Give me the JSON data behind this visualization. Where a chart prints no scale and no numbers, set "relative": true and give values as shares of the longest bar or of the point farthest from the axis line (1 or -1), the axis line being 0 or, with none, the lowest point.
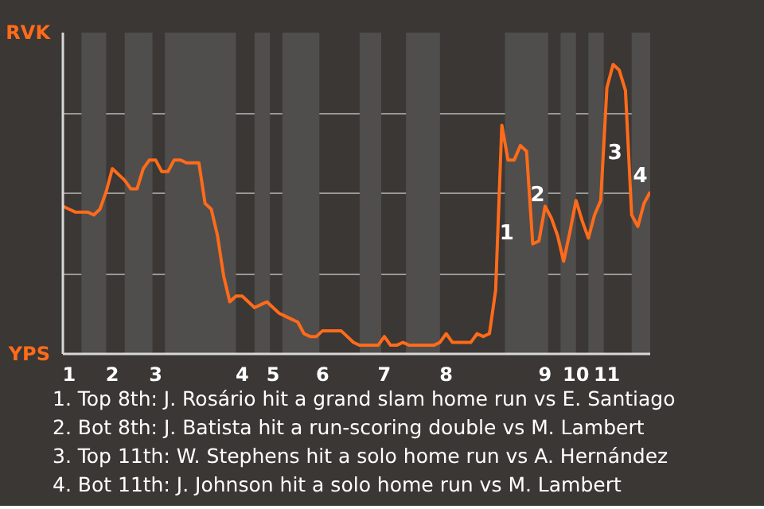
{
  "chart_data": {
    "type": "line",
    "relative": true,
    "categories": [
      null,
      "1",
      null,
      null,
      null,
      null,
      null,
      null,
      "2",
      null,
      null,
      null,
      null,
      null,
      null,
      "3",
      null,
      null,
      null,
      null,
      null,
      null,
      null,
      null,
      null,
      null,
      null,
      null,
      null,
      "4",
      null,
      null,
      null,
      null,
      "5",
      null,
      null,
      null,
      null,
      null,
      null,
      null,
      "6",
      null,
      null,
      null,
      null,
      null,
      null,
      null,
      null,
      null,
      "7",
      null,
      null,
      null,
      null,
      null,
      null,
      null,
      null,
      null,
      "8",
      null,
      null,
      null,
      null,
      null,
      null,
      null,
      null,
      null,
      null,
      null,
      null,
      null,
      null,
      null,
      "9",
      null,
      null,
      null,
      null,
      "10",
      null,
      null,
      null,
      null,
      "11",
      null,
      null,
      null,
      null,
      null,
      null,
      null
    ],
    "grid": "y",
    "marker": "none",
    "line_style": "solid",
    "series": [
      {
        "color": "#ff6b1a",
        "values": [
          0.51,
          0.5,
          0.49,
          0.49,
          0.49,
          0.48,
          0.5,
          0.56,
          0.64,
          0.62,
          0.6,
          0.57,
          0.57,
          0.64,
          0.67,
          0.67,
          0.63,
          0.63,
          0.67,
          0.67,
          0.66,
          0.66,
          0.66,
          0.52,
          0.5,
          0.41,
          0.27,
          0.18,
          0.2,
          0.2,
          0.18,
          0.16,
          0.17,
          0.18,
          0.16,
          0.14,
          0.13,
          0.12,
          0.11,
          0.07,
          0.06,
          0.06,
          0.08,
          0.08,
          0.08,
          0.08,
          0.06,
          0.04,
          0.03,
          0.03,
          0.03,
          0.03,
          0.06,
          0.03,
          0.03,
          0.04,
          0.03,
          0.03,
          0.03,
          0.03,
          0.03,
          0.04,
          0.07,
          0.04,
          0.04,
          0.04,
          0.04,
          0.07,
          0.06,
          0.07,
          0.22,
          0.79,
          0.67,
          0.67,
          0.72,
          0.7,
          0.38,
          0.39,
          0.51,
          0.47,
          0.41,
          0.32,
          0.42,
          0.53,
          0.46,
          0.4,
          0.48,
          0.53,
          0.92,
          1,
          0.98,
          0.91,
          0.48,
          0.44,
          0.52,
          0.56
        ]
      }
    ],
    "annotations": [
      "RVK",
      "YPS",
      "1",
      "2",
      "3",
      "4",
      "1. Top 8th: J. Rosário hit a grand slam home run vs E. Santiago",
      "2. Bot 8th: J. Batista hit a run-scoring double vs M. Lambert",
      "3. Top 11th: W. Stephens hit a solo home run vs A. Hernández",
      "4. Bot 11th: J. Johnson hit a solo home run vs M. Lambert"
    ]
  }
}
